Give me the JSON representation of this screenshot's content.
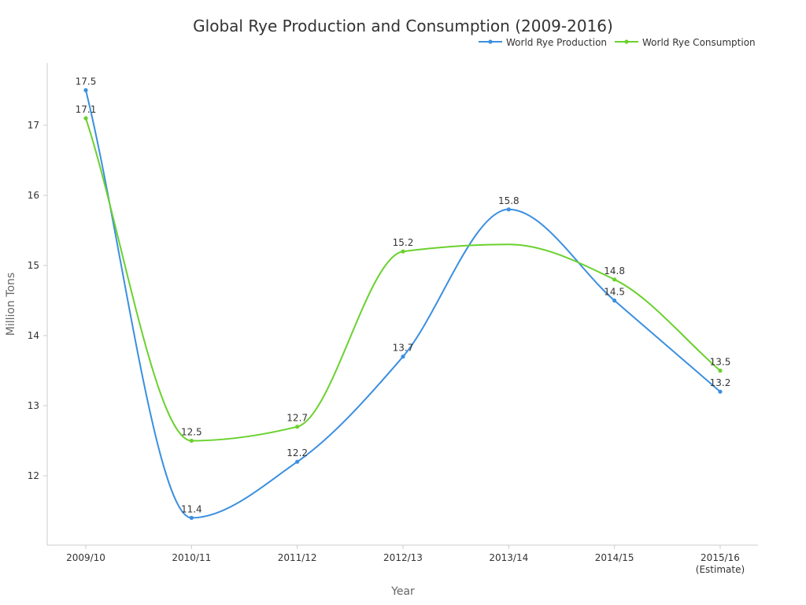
{
  "chart_data": {
    "type": "line",
    "title": "Global Rye Production and Consumption (2009-2016)",
    "xlabel": "Year",
    "ylabel": "Million Tons",
    "categories": [
      "2009/10",
      "2010/11",
      "2011/12",
      "2012/13",
      "2013/14",
      "2014/15",
      "2015/16"
    ],
    "category_sublabels": [
      "",
      "",
      "",
      "",
      "",
      "",
      "(Estimate)"
    ],
    "yticks": [
      12,
      13,
      14,
      15,
      16,
      17
    ],
    "ylim": [
      11,
      17.9
    ],
    "grid": false,
    "legend_position": "top-right",
    "series": [
      {
        "name": "World Rye Production",
        "color": "#3b8fe0",
        "values": [
          17.5,
          11.4,
          12.2,
          13.7,
          15.8,
          14.5,
          13.2
        ],
        "labels": [
          "17.5",
          "11.4",
          "12.2",
          "13.7",
          "15.8",
          "14.5",
          "13.2"
        ]
      },
      {
        "name": "World Rye Consumption",
        "color": "#6ad12e",
        "values": [
          17.1,
          12.5,
          12.7,
          15.2,
          null,
          14.8,
          13.5
        ],
        "labels": [
          "17.1",
          "12.5",
          "12.7",
          "15.2",
          "",
          "14.8",
          "13.5"
        ],
        "curve_through": [
          17.1,
          12.5,
          12.7,
          15.2,
          15.3,
          14.8,
          13.5
        ]
      }
    ]
  }
}
